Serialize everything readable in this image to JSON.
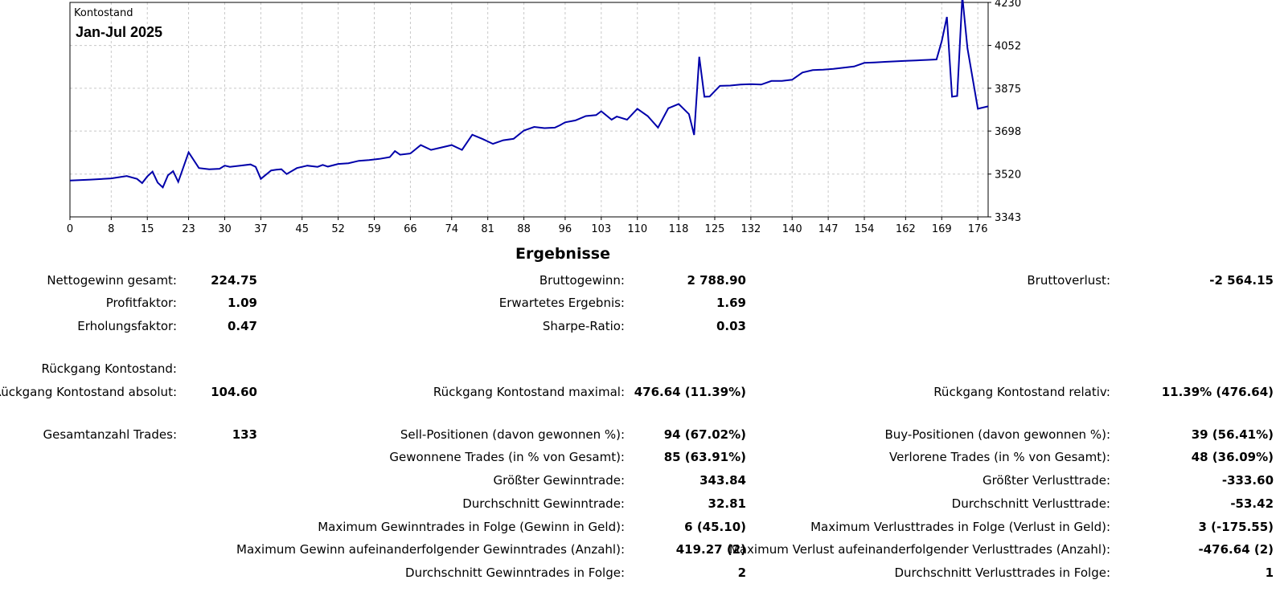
{
  "chart_data": {
    "type": "line",
    "title": "Jan-Jul 2025",
    "label": "Kontostand",
    "x_ticks": [
      "0",
      "8",
      "15",
      "23",
      "30",
      "37",
      "45",
      "52",
      "59",
      "66",
      "74",
      "81",
      "88",
      "96",
      "103",
      "110",
      "118",
      "125",
      "132",
      "140",
      "147",
      "154",
      "162",
      "169",
      "176"
    ],
    "y_ticks": [
      "4230",
      "4052",
      "3875",
      "3698",
      "3520",
      "3343"
    ],
    "xlim": [
      0,
      178
    ],
    "ylim": [
      3343,
      4230
    ],
    "grid": true,
    "line_color": "#0000aa",
    "series": [
      {
        "x": [
          0,
          4,
          8,
          11,
          13,
          14,
          15,
          16,
          17,
          18,
          19,
          20,
          21,
          23,
          25,
          27,
          29,
          30,
          31,
          33,
          35,
          36,
          37,
          39,
          40,
          41,
          42,
          44,
          46,
          48,
          49,
          50,
          52,
          54,
          56,
          58,
          60,
          62,
          63,
          64,
          66,
          68,
          70,
          72,
          74,
          76,
          78,
          80,
          82,
          84,
          86,
          88,
          90,
          92,
          94,
          95,
          96,
          98,
          100,
          102,
          103,
          105,
          106,
          108,
          110,
          112,
          114,
          116,
          118,
          120,
          121,
          122,
          123,
          124,
          126,
          128,
          130,
          132,
          134,
          136,
          138,
          140,
          142,
          144,
          146,
          148,
          150,
          152,
          154,
          156,
          158,
          160,
          162,
          164,
          166,
          168,
          169,
          170,
          171,
          172,
          173,
          174,
          176,
          178
        ],
        "y": [
          3493,
          3497,
          3502,
          3512,
          3500,
          3483,
          3510,
          3530,
          3485,
          3465,
          3515,
          3532,
          3488,
          3610,
          3545,
          3540,
          3542,
          3555,
          3550,
          3555,
          3560,
          3550,
          3500,
          3535,
          3538,
          3540,
          3520,
          3545,
          3555,
          3550,
          3558,
          3551,
          3562,
          3565,
          3575,
          3578,
          3583,
          3590,
          3615,
          3600,
          3605,
          3640,
          3620,
          3630,
          3640,
          3620,
          3683,
          3665,
          3645,
          3660,
          3666,
          3700,
          3715,
          3710,
          3712,
          3722,
          3734,
          3742,
          3760,
          3764,
          3780,
          3745,
          3758,
          3745,
          3790,
          3760,
          3712,
          3792,
          3810,
          3768,
          3682,
          4005,
          3840,
          3841,
          3885,
          3886,
          3890,
          3892,
          3890,
          3905,
          3905,
          3910,
          3940,
          3950,
          3952,
          3955,
          3960,
          3965,
          3980,
          3982,
          3984,
          3986,
          3988,
          3990,
          3992,
          3994,
          4070,
          4170,
          3840,
          3843,
          4255,
          4040,
          3790,
          3800
        ]
      }
    ]
  },
  "results": {
    "title": "Ergebnisse",
    "col1": [
      {
        "label": "Nettogewinn gesamt:",
        "value": "224.75"
      },
      {
        "label": "Profitfaktor:",
        "value": "1.09"
      },
      {
        "label": "Erholungsfaktor:",
        "value": "0.47"
      },
      {
        "label": "Rückgang Kontostand:",
        "value": ""
      },
      {
        "label": "Rückgang Kontostand absolut:",
        "value": "104.60"
      },
      {
        "label": "Gesamtanzahl Trades:",
        "value": "133"
      }
    ],
    "col2": [
      {
        "label": "Bruttogewinn:",
        "value": "2 788.90"
      },
      {
        "label": "Erwartetes Ergebnis:",
        "value": "1.69"
      },
      {
        "label": "Sharpe-Ratio:",
        "value": "0.03"
      },
      {
        "label": "Rückgang Kontostand maximal:",
        "value": "476.64 (11.39%)"
      },
      {
        "label": "Sell-Positionen (davon gewonnen %):",
        "value": "94 (67.02%)"
      },
      {
        "label": "Gewonnene Trades (in % von Gesamt):",
        "value": "85 (63.91%)"
      },
      {
        "label": "Größter Gewinntrade:",
        "value": "343.84"
      },
      {
        "label": "Durchschnitt Gewinntrade:",
        "value": "32.81"
      },
      {
        "label": "Maximum Gewinntrades in Folge (Gewinn in Geld):",
        "value": "6 (45.10)"
      },
      {
        "label": "Maximum Gewinn aufeinanderfolgender Gewinntrades (Anzahl):",
        "value": "419.27 (2)"
      },
      {
        "label": "Durchschnitt Gewinntrades in Folge:",
        "value": "2"
      }
    ],
    "col3": [
      {
        "label": "Bruttoverlust:",
        "value": "-2 564.15"
      },
      {
        "label": "Rückgang Kontostand relativ:",
        "value": "11.39% (476.64)"
      },
      {
        "label": "Buy-Positionen (davon gewonnen %):",
        "value": "39 (56.41%)"
      },
      {
        "label": "Verlorene Trades (in % von Gesamt):",
        "value": "48 (36.09%)"
      },
      {
        "label": "Größter Verlusttrade:",
        "value": "-333.60"
      },
      {
        "label": "Durchschnitt Verlusttrade:",
        "value": "-53.42"
      },
      {
        "label": "Maximum Verlusttrades in Folge (Verlust in Geld):",
        "value": "3 (-175.55)"
      },
      {
        "label": "Maximum Verlust aufeinanderfolgender Verlusttrades (Anzahl):",
        "value": "-476.64 (2)"
      },
      {
        "label": "Durchschnitt Verlusttrades in Folge:",
        "value": "1"
      }
    ]
  }
}
